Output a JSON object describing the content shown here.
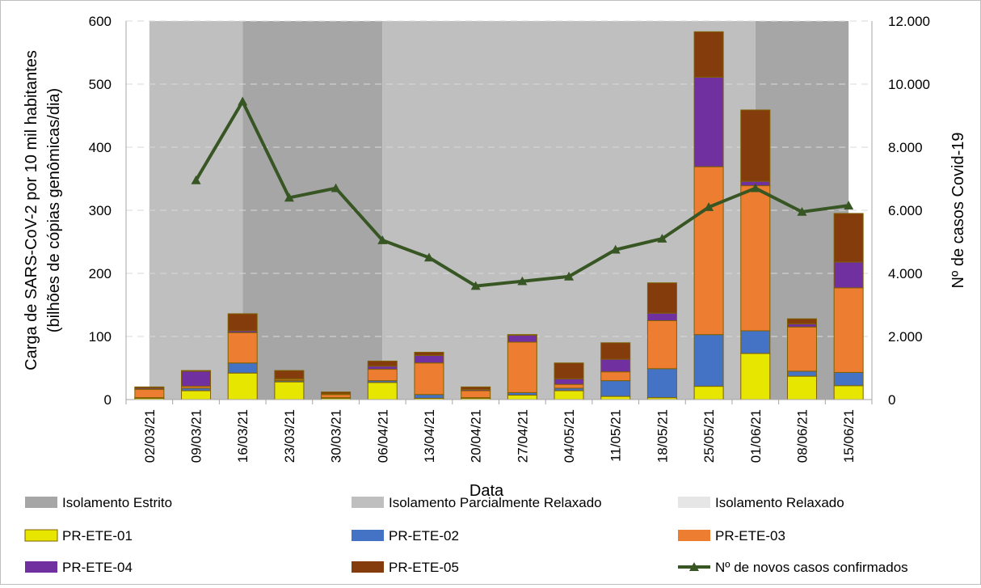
{
  "chart_data": {
    "type": "bar",
    "stacked": true,
    "xlabel": "Data",
    "ylabel_line1": "Carga de SARS-CoV-2 por 10 mil habitantes",
    "ylabel_line2": "(bilhões de cópias genômicas/dia)",
    "y2label": "Nº de casos Covid-19",
    "ylim": [
      0,
      600
    ],
    "y2lim": [
      0,
      12000
    ],
    "yticks": [
      "0",
      "100",
      "200",
      "300",
      "400",
      "500",
      "600"
    ],
    "y2ticks": [
      "0",
      "2.000",
      "4.000",
      "6.000",
      "8.000",
      "10.000",
      "12.000"
    ],
    "categories": [
      "02/03/21",
      "09/03/21",
      "16/03/21",
      "23/03/21",
      "30/03/21",
      "06/04/21",
      "13/04/21",
      "20/04/21",
      "27/04/21",
      "04/05/21",
      "11/05/21",
      "18/05/21",
      "25/05/21",
      "01/06/21",
      "08/06/21",
      "15/06/21"
    ],
    "series": [
      {
        "name": "PR-ETE-01",
        "color": "#e6e600",
        "values": [
          2,
          14,
          42,
          28,
          2,
          27,
          2,
          2,
          7,
          14,
          5,
          3,
          21,
          73,
          37,
          22
        ]
      },
      {
        "name": "PR-ETE-02",
        "color": "#4472c4",
        "values": [
          1,
          4,
          16,
          2,
          1,
          3,
          6,
          1,
          4,
          4,
          25,
          46,
          82,
          36,
          8,
          21
        ]
      },
      {
        "name": "PR-ETE-03",
        "color": "#ed7d31",
        "values": [
          13,
          3,
          48,
          2,
          5,
          18,
          50,
          11,
          80,
          6,
          14,
          76,
          266,
          230,
          70,
          134
        ]
      },
      {
        "name": "PR-ETE-04",
        "color": "#7030a0",
        "values": [
          2,
          24,
          3,
          1,
          1,
          5,
          12,
          2,
          11,
          9,
          20,
          12,
          142,
          7,
          5,
          41
        ]
      },
      {
        "name": "PR-ETE-05",
        "color": "#843c0c",
        "values": [
          2,
          1,
          27,
          13,
          3,
          8,
          5,
          4,
          1,
          25,
          26,
          48,
          72,
          113,
          8,
          77
        ]
      }
    ],
    "line_series": {
      "name": "Nº de novos casos confirmados",
      "color": "#375623",
      "axis": "right",
      "values": [
        null,
        6950,
        9450,
        6400,
        6700,
        5050,
        4500,
        3600,
        3750,
        3900,
        4750,
        5100,
        6100,
        6700,
        5950,
        6150
      ]
    },
    "bands": [
      {
        "label": "Isolamento Parcialmente Relaxado",
        "from": 0,
        "to": 2,
        "color": "#bfbfbf"
      },
      {
        "label": "Isolamento Estrito",
        "from": 2,
        "to": 5,
        "color": "#a6a6a6"
      },
      {
        "label": "Isolamento Parcialmente Relaxado",
        "from": 5,
        "to": 13,
        "color": "#bfbfbf"
      },
      {
        "label": "Isolamento Estrito",
        "from": 13,
        "to": 15,
        "color": "#a6a6a6"
      }
    ],
    "legend_placement": "bottom",
    "legend": [
      {
        "label": "Isolamento Estrito",
        "kind": "box",
        "color": "#a6a6a6"
      },
      {
        "label": "Isolamento Parcialmente Relaxado",
        "kind": "box",
        "color": "#bfbfbf"
      },
      {
        "label": "Isolamento Relaxado",
        "kind": "box",
        "color": "#e6e6e6"
      },
      {
        "label": "PR-ETE-01",
        "kind": "box",
        "color": "#e6e600"
      },
      {
        "label": "PR-ETE-02",
        "kind": "box",
        "color": "#4472c4"
      },
      {
        "label": "PR-ETE-03",
        "kind": "box",
        "color": "#ed7d31"
      },
      {
        "label": "PR-ETE-04",
        "kind": "box",
        "color": "#7030a0"
      },
      {
        "label": "PR-ETE-05",
        "kind": "box",
        "color": "#843c0c"
      },
      {
        "label": "Nº de novos casos confirmados",
        "kind": "line",
        "color": "#375623"
      }
    ]
  }
}
